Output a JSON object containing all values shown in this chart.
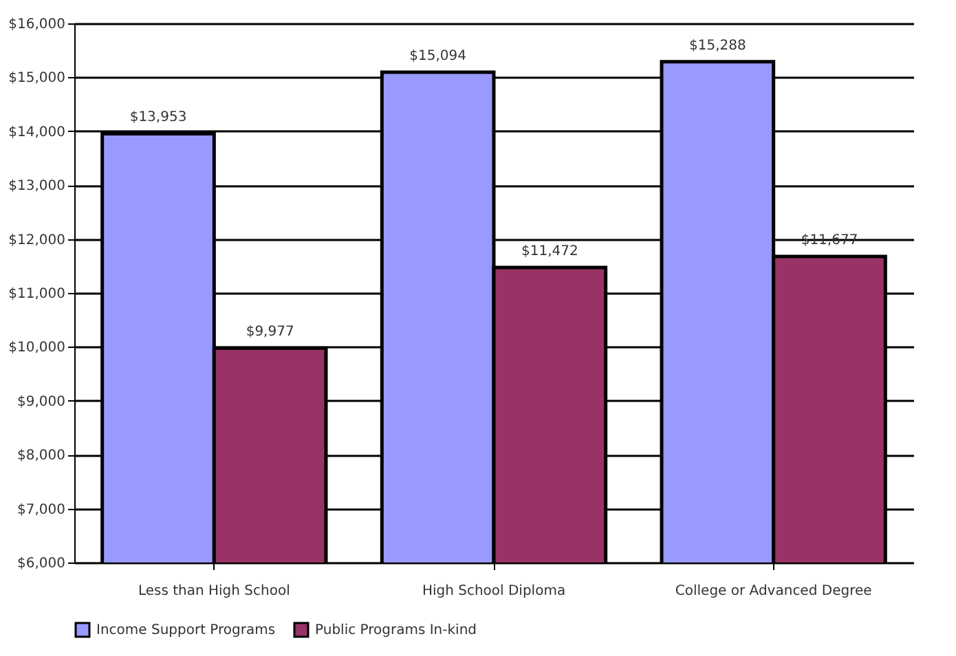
{
  "chart_data": {
    "type": "bar",
    "categories": [
      "Less than High School",
      "High School Diploma",
      "College or Advanced Degree"
    ],
    "series": [
      {
        "name": "Income Support Programs",
        "color": "#9999ff",
        "values": [
          13953,
          15094,
          15288
        ],
        "value_labels": [
          "$13,953",
          "$15,094",
          "$15,288"
        ]
      },
      {
        "name": "Public Programs In-kind",
        "color": "#993366",
        "values": [
          9977,
          11472,
          11677
        ],
        "value_labels": [
          "$9,977",
          "$11,472",
          "$11,677"
        ]
      }
    ],
    "ylim": [
      6000,
      16000
    ],
    "yticks": [
      {
        "value": 6000,
        "label": "$6,000"
      },
      {
        "value": 7000,
        "label": "$7,000"
      },
      {
        "value": 8000,
        "label": "$8,000"
      },
      {
        "value": 9000,
        "label": "$9,000"
      },
      {
        "value": 10000,
        "label": "$10,000"
      },
      {
        "value": 11000,
        "label": "$11,000"
      },
      {
        "value": 12000,
        "label": "$12,000"
      },
      {
        "value": 13000,
        "label": "$13,000"
      },
      {
        "value": 14000,
        "label": "$14,000"
      },
      {
        "value": 15000,
        "label": "$15,000"
      },
      {
        "value": 16000,
        "label": "$16,000"
      }
    ],
    "grid": "y",
    "legend": "bottom"
  }
}
